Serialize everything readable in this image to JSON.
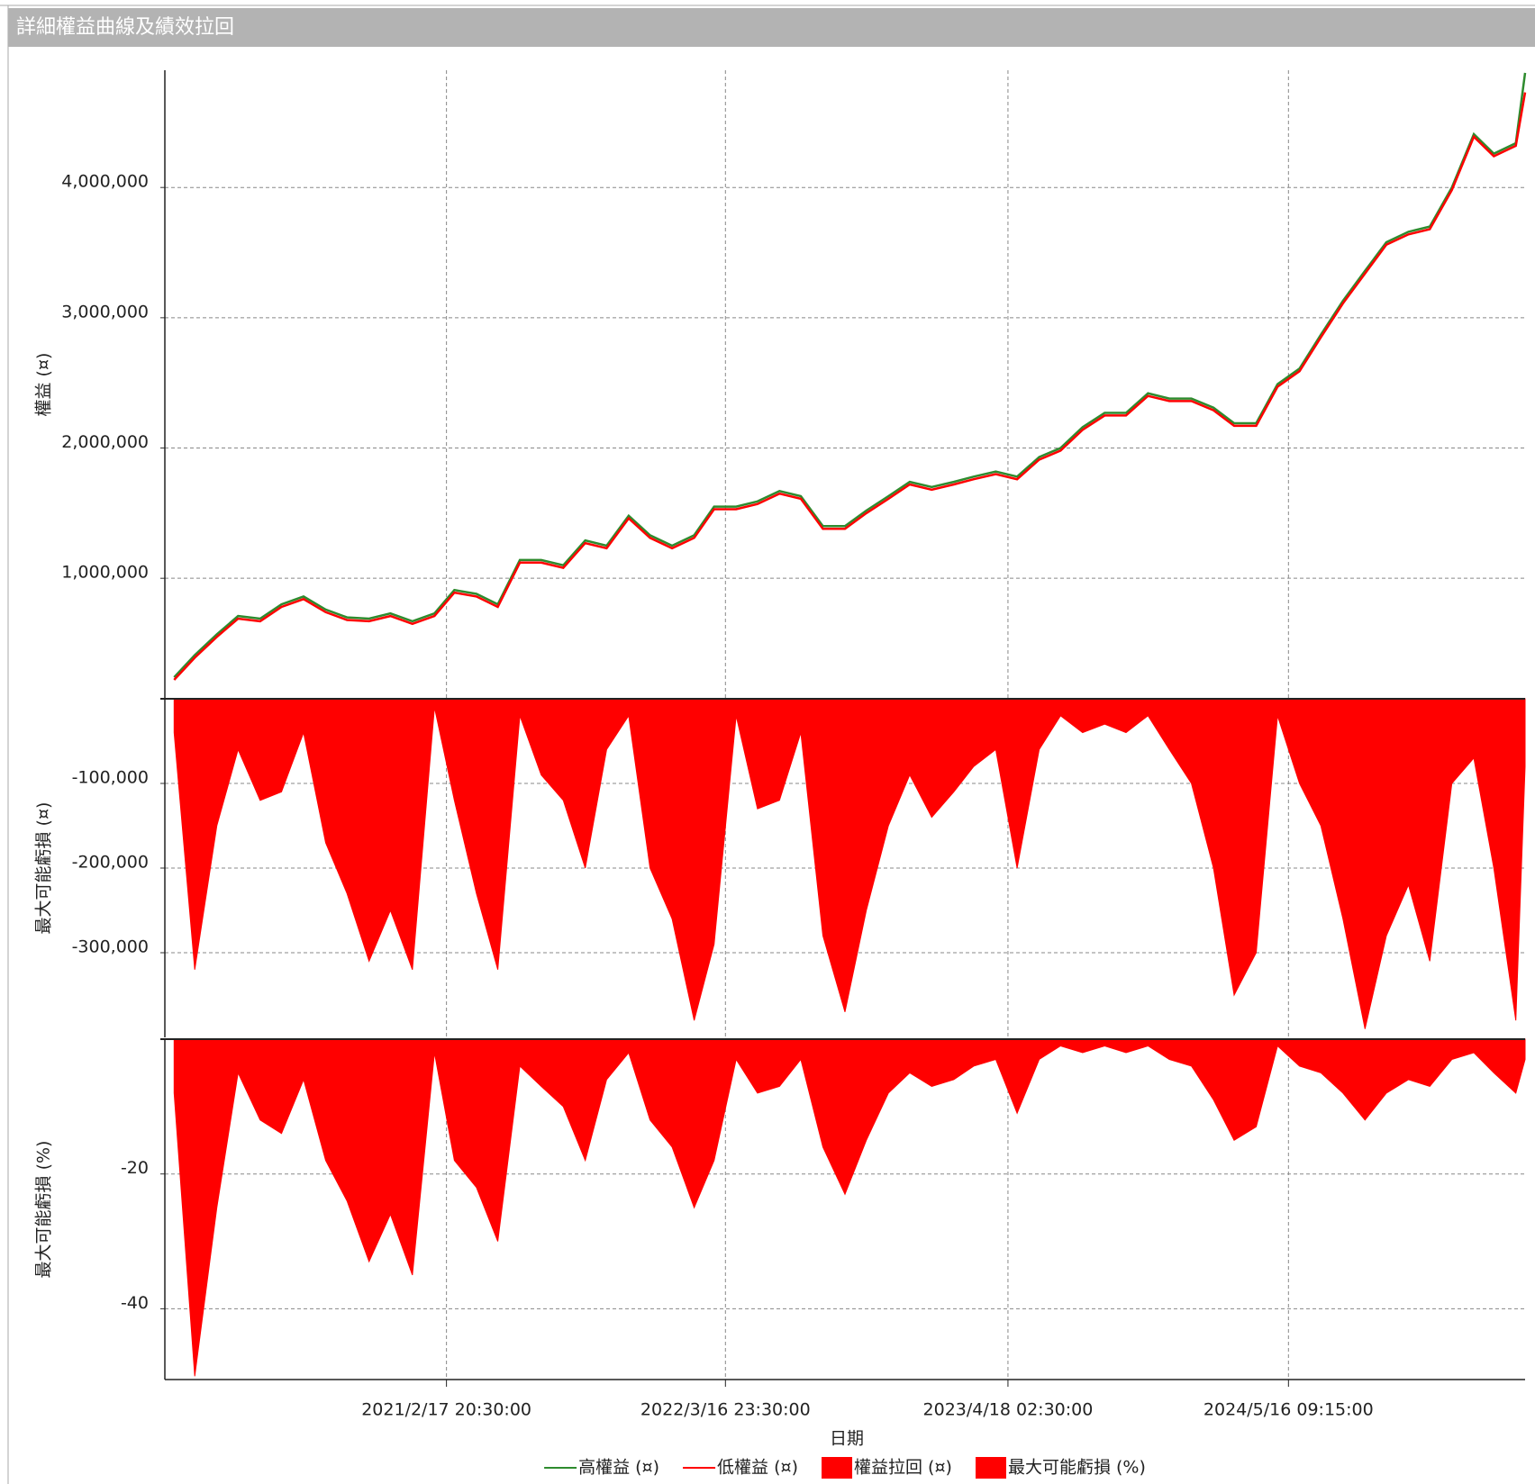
{
  "chart_data": [
    {
      "type": "line",
      "title": "詳細權益曲線及績效拉回",
      "ylabel": "權益 (¤)",
      "ylim": [
        75000,
        4900000
      ],
      "yticks": [
        {
          "value": 1000000,
          "label": "1,000,000"
        },
        {
          "value": 2000000,
          "label": "2,000,000"
        },
        {
          "value": 3000000,
          "label": "3,000,000"
        },
        {
          "value": 4000000,
          "label": "4,000,000"
        }
      ],
      "x": [
        "2020/2/1",
        "2020/3/1",
        "2020/4/1",
        "2020/5/1",
        "2020/6/1",
        "2020/7/1",
        "2020/8/1",
        "2020/9/1",
        "2020/10/1",
        "2020/11/1",
        "2020/12/1",
        "2021/1/1",
        "2021/2/1",
        "2021/3/1",
        "2021/4/1",
        "2021/5/1",
        "2021/6/1",
        "2021/7/1",
        "2021/8/1",
        "2021/9/1",
        "2021/10/1",
        "2021/11/1",
        "2021/12/1",
        "2022/1/1",
        "2022/2/1",
        "2022/3/1",
        "2022/4/1",
        "2022/5/1",
        "2022/6/1",
        "2022/7/1",
        "2022/8/1",
        "2022/9/1",
        "2022/10/1",
        "2022/11/1",
        "2022/12/1",
        "2023/1/1",
        "2023/2/1",
        "2023/3/1",
        "2023/4/1",
        "2023/5/1",
        "2023/6/1",
        "2023/7/1",
        "2023/8/1",
        "2023/9/1",
        "2023/10/1",
        "2023/11/1",
        "2023/12/1",
        "2024/1/1",
        "2024/2/1",
        "2024/3/1",
        "2024/4/1",
        "2024/5/1",
        "2024/6/1",
        "2024/7/1",
        "2024/8/1",
        "2024/9/1",
        "2024/10/1",
        "2024/11/1",
        "2024/12/1",
        "2025/1/1",
        "2025/2/1",
        "2025/3/1",
        "2025/4/1",
        "2025/4/14"
      ],
      "series": [
        {
          "name": "高權益 (¤)",
          "color": "#2e8b2e",
          "values": [
            240000,
            410000,
            570000,
            710000,
            690000,
            800000,
            860000,
            760000,
            700000,
            690000,
            730000,
            670000,
            730000,
            910000,
            880000,
            800000,
            1140000,
            1140000,
            1100000,
            1290000,
            1250000,
            1480000,
            1330000,
            1250000,
            1330000,
            1550000,
            1550000,
            1590000,
            1670000,
            1630000,
            1400000,
            1400000,
            1520000,
            1630000,
            1740000,
            1700000,
            1740000,
            1780000,
            1820000,
            1780000,
            1930000,
            2000000,
            2160000,
            2270000,
            2270000,
            2420000,
            2380000,
            2380000,
            2310000,
            2190000,
            2190000,
            2490000,
            2610000,
            2870000,
            3130000,
            3360000,
            3580000,
            3660000,
            3700000,
            4000000,
            4410000,
            4260000,
            4340000,
            4880000
          ]
        },
        {
          "name": "低權益 (¤)",
          "color": "#ff0000",
          "values": [
            220000,
            390000,
            550000,
            690000,
            670000,
            780000,
            840000,
            740000,
            680000,
            670000,
            710000,
            650000,
            710000,
            890000,
            860000,
            780000,
            1120000,
            1120000,
            1080000,
            1270000,
            1230000,
            1460000,
            1310000,
            1230000,
            1310000,
            1530000,
            1530000,
            1570000,
            1650000,
            1610000,
            1380000,
            1380000,
            1500000,
            1610000,
            1720000,
            1680000,
            1720000,
            1760000,
            1800000,
            1760000,
            1910000,
            1980000,
            2140000,
            2250000,
            2250000,
            2400000,
            2360000,
            2360000,
            2290000,
            2170000,
            2170000,
            2470000,
            2590000,
            2850000,
            3110000,
            3340000,
            3560000,
            3640000,
            3680000,
            3980000,
            4390000,
            4240000,
            4320000,
            4730000
          ]
        }
      ]
    },
    {
      "type": "area",
      "ylabel": "最大可能虧損 (¤)",
      "ylim": [
        -400000,
        0
      ],
      "yticks": [
        {
          "value": -300000,
          "label": "-300,000"
        },
        {
          "value": -200000,
          "label": "-200,000"
        },
        {
          "value": -100000,
          "label": "-100,000"
        }
      ],
      "x": [
        "2020/2/1",
        "2020/3/1",
        "2020/4/1",
        "2020/5/1",
        "2020/6/1",
        "2020/7/1",
        "2020/8/1",
        "2020/9/1",
        "2020/10/1",
        "2020/11/1",
        "2020/12/1",
        "2021/1/1",
        "2021/2/1",
        "2021/3/1",
        "2021/4/1",
        "2021/5/1",
        "2021/6/1",
        "2021/7/1",
        "2021/8/1",
        "2021/9/1",
        "2021/10/1",
        "2021/11/1",
        "2021/12/1",
        "2022/1/1",
        "2022/2/1",
        "2022/3/1",
        "2022/4/1",
        "2022/5/1",
        "2022/6/1",
        "2022/7/1",
        "2022/8/1",
        "2022/9/1",
        "2022/10/1",
        "2022/11/1",
        "2022/12/1",
        "2023/1/1",
        "2023/2/1",
        "2023/3/1",
        "2023/4/1",
        "2023/5/1",
        "2023/6/1",
        "2023/7/1",
        "2023/8/1",
        "2023/9/1",
        "2023/10/1",
        "2023/11/1",
        "2023/12/1",
        "2024/1/1",
        "2024/2/1",
        "2024/3/1",
        "2024/4/1",
        "2024/5/1",
        "2024/6/1",
        "2024/7/1",
        "2024/8/1",
        "2024/9/1",
        "2024/10/1",
        "2024/11/1",
        "2024/12/1",
        "2025/1/1",
        "2025/2/1",
        "2025/3/1",
        "2025/4/1",
        "2025/4/14"
      ],
      "series": [
        {
          "name": "權益拉回 (¤)",
          "color": "#ff0000",
          "values": [
            -40000,
            -320000,
            -150000,
            -60000,
            -120000,
            -110000,
            -40000,
            -170000,
            -230000,
            -310000,
            -250000,
            -320000,
            -10000,
            -120000,
            -230000,
            -320000,
            -20000,
            -90000,
            -120000,
            -200000,
            -60000,
            -20000,
            -200000,
            -260000,
            -380000,
            -290000,
            -20000,
            -130000,
            -120000,
            -40000,
            -280000,
            -370000,
            -250000,
            -150000,
            -90000,
            -140000,
            -110000,
            -80000,
            -60000,
            -200000,
            -60000,
            -20000,
            -40000,
            -30000,
            -40000,
            -20000,
            -60000,
            -100000,
            -200000,
            -350000,
            -300000,
            -20000,
            -100000,
            -150000,
            -260000,
            -390000,
            -280000,
            -220000,
            -310000,
            -100000,
            -70000,
            -200000,
            -380000,
            -80000
          ]
        }
      ]
    },
    {
      "type": "area",
      "ylabel": "最大可能虧損 (%)",
      "xlabel": "日期",
      "ylim": [
        -50.5,
        0
      ],
      "yticks": [
        -40,
        -20
      ],
      "xlim": [
        "2020/1/19",
        "2025/4/14"
      ],
      "xticks": [
        "2021/2/17 20:30:00",
        "2022/3/16 23:30:00",
        "2023/4/18 02:30:00",
        "2024/5/16 09:15:00"
      ],
      "x": [
        "2020/2/1",
        "2020/3/1",
        "2020/4/1",
        "2020/5/1",
        "2020/6/1",
        "2020/7/1",
        "2020/8/1",
        "2020/9/1",
        "2020/10/1",
        "2020/11/1",
        "2020/12/1",
        "2021/1/1",
        "2021/2/1",
        "2021/3/1",
        "2021/4/1",
        "2021/5/1",
        "2021/6/1",
        "2021/7/1",
        "2021/8/1",
        "2021/9/1",
        "2021/10/1",
        "2021/11/1",
        "2021/12/1",
        "2022/1/1",
        "2022/2/1",
        "2022/3/1",
        "2022/4/1",
        "2022/5/1",
        "2022/6/1",
        "2022/7/1",
        "2022/8/1",
        "2022/9/1",
        "2022/10/1",
        "2022/11/1",
        "2022/12/1",
        "2023/1/1",
        "2023/2/1",
        "2023/3/1",
        "2023/4/1",
        "2023/5/1",
        "2023/6/1",
        "2023/7/1",
        "2023/8/1",
        "2023/9/1",
        "2023/10/1",
        "2023/11/1",
        "2023/12/1",
        "2024/1/1",
        "2024/2/1",
        "2024/3/1",
        "2024/4/1",
        "2024/5/1",
        "2024/6/1",
        "2024/7/1",
        "2024/8/1",
        "2024/9/1",
        "2024/10/1",
        "2024/11/1",
        "2024/12/1",
        "2025/1/1",
        "2025/2/1",
        "2025/3/1",
        "2025/4/1",
        "2025/4/14"
      ],
      "series": [
        {
          "name": "最大可能虧損 (%)",
          "color": "#ff0000",
          "values": [
            -8,
            -50,
            -25,
            -5,
            -12,
            -14,
            -6,
            -18,
            -24,
            -33,
            -26,
            -35,
            -2,
            -18,
            -22,
            -30,
            -4,
            -7,
            -10,
            -18,
            -6,
            -2,
            -12,
            -16,
            -25,
            -18,
            -3,
            -8,
            -7,
            -3,
            -16,
            -23,
            -15,
            -8,
            -5,
            -7,
            -6,
            -4,
            -3,
            -11,
            -3,
            -1,
            -2,
            -1,
            -2,
            -1,
            -3,
            -4,
            -9,
            -15,
            -13,
            -1,
            -4,
            -5,
            -8,
            -12,
            -8,
            -6,
            -7,
            -3,
            -2,
            -5,
            -8,
            -3
          ]
        }
      ]
    }
  ]
}
